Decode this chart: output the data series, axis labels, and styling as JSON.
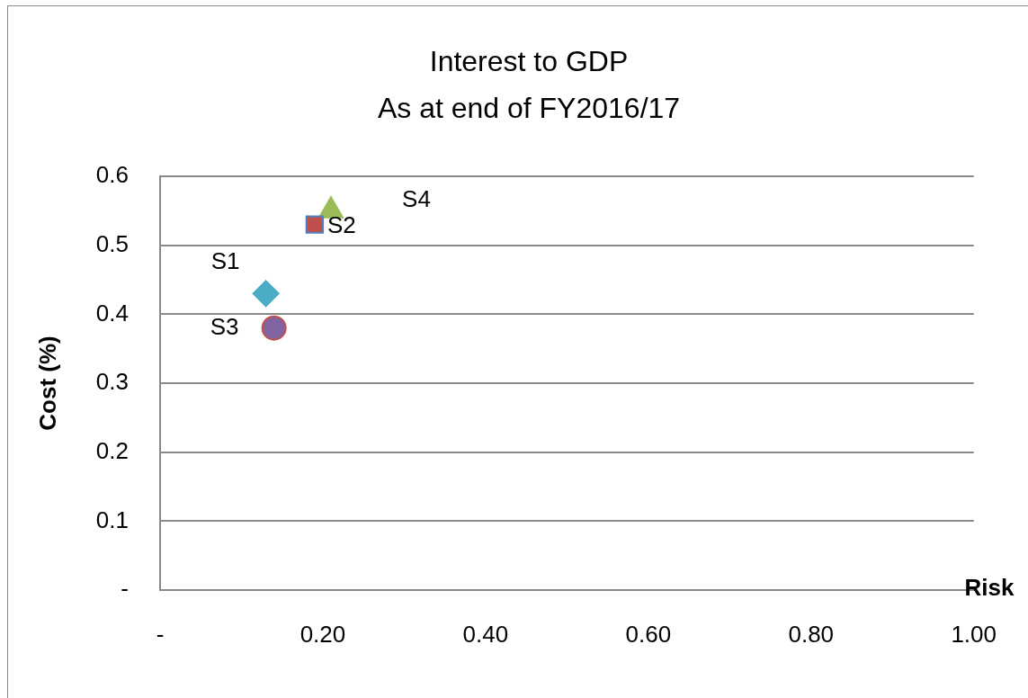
{
  "chart_data": {
    "type": "scatter",
    "title": "Interest to GDP",
    "subtitle": "As at end of FY2016/17",
    "xlabel": "Risk",
    "ylabel": "Cost (%)",
    "xlim": [
      0,
      1
    ],
    "xticks": [
      {
        "value": 0,
        "label": "-"
      },
      {
        "value": 0.2,
        "label": "0.20"
      },
      {
        "value": 0.4,
        "label": "0.40"
      },
      {
        "value": 0.6,
        "label": "0.60"
      },
      {
        "value": 0.8,
        "label": "0.80"
      },
      {
        "value": 1,
        "label": "1.00"
      }
    ],
    "ylim": [
      0,
      0.6
    ],
    "yticks": [
      {
        "value": 0,
        "label": "-"
      },
      0.1,
      0.2,
      0.3,
      0.4,
      0.5,
      0.6
    ],
    "grid": "y",
    "legend": false,
    "series": [
      {
        "name": "S1",
        "color": "#4bacc6",
        "marker": "diamond",
        "x": [
          0.13
        ],
        "values": [
          0.43
        ]
      },
      {
        "name": "S2",
        "color": "#c0504d",
        "marker": "square",
        "x": [
          0.19
        ],
        "values": [
          0.53
        ]
      },
      {
        "name": "S3",
        "color": "#8064a2",
        "marker": "circle",
        "x": [
          0.14
        ],
        "values": [
          0.38
        ]
      },
      {
        "name": "S4",
        "color": "#9bbb59",
        "marker": "triangle",
        "x": [
          0.21
        ],
        "values": [
          0.55
        ]
      }
    ]
  }
}
